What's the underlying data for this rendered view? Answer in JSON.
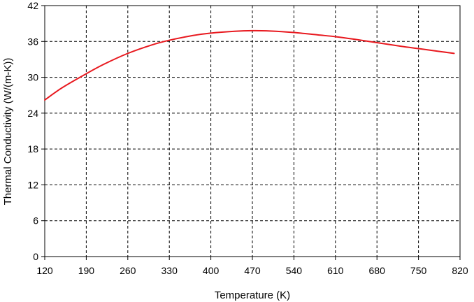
{
  "chart_data": {
    "type": "line",
    "title": "",
    "xlabel": "Temperature (K)",
    "ylabel": "Thermal Conductivity (W/(m-K))",
    "xlim": [
      120,
      820
    ],
    "ylim": [
      0,
      42
    ],
    "xticks": [
      120,
      190,
      260,
      330,
      400,
      470,
      540,
      610,
      680,
      750,
      820
    ],
    "yticks": [
      0,
      6,
      12,
      18,
      24,
      30,
      36,
      42
    ],
    "grid": true,
    "series": [
      {
        "color": "#e8191f",
        "x": [
          120,
          150,
          190,
          220,
          260,
          300,
          330,
          370,
          400,
          440,
          470,
          500,
          540,
          580,
          610,
          640,
          680,
          720,
          750,
          780,
          810
        ],
        "y": [
          26.2,
          28.3,
          30.6,
          32.2,
          34.0,
          35.4,
          36.2,
          37.0,
          37.4,
          37.7,
          37.8,
          37.75,
          37.5,
          37.1,
          36.8,
          36.4,
          35.8,
          35.2,
          34.8,
          34.4,
          34.0
        ]
      }
    ]
  }
}
